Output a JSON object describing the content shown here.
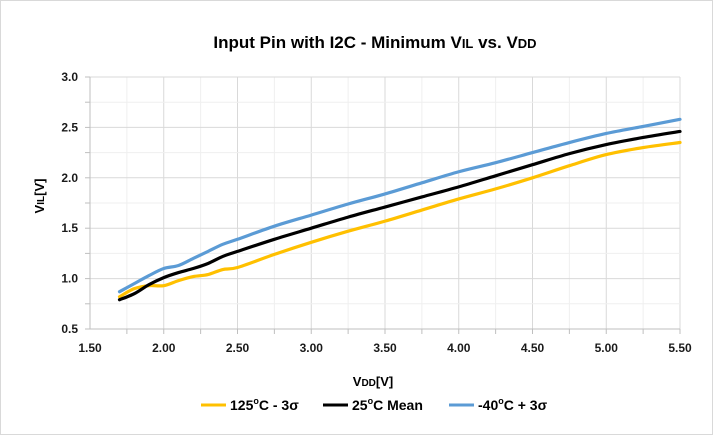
{
  "chart_data": {
    "type": "line",
    "title": "Input Pin with I2C - Minimum VIL vs. VDD",
    "title_parts": [
      "Input Pin with I2C - Minimum V",
      "IL",
      " vs. V",
      "DD"
    ],
    "xlabel": "VDD[V]",
    "xlabel_parts": [
      "V",
      "DD",
      "[V]"
    ],
    "ylabel": "VIL[V]",
    "ylabel_parts": [
      "V",
      "IL",
      "[V]"
    ],
    "xlim": [
      1.5,
      5.5
    ],
    "ylim": [
      0.5,
      3.0
    ],
    "x_ticks": [
      1.5,
      2.0,
      2.5,
      3.0,
      3.5,
      4.0,
      4.5,
      5.0,
      5.5
    ],
    "x_tick_labels": [
      "1.50",
      "2.00",
      "2.50",
      "3.00",
      "3.50",
      "4.00",
      "4.50",
      "5.00",
      "5.50"
    ],
    "y_ticks": [
      0.5,
      1.0,
      1.5,
      2.0,
      2.5,
      3.0
    ],
    "y_tick_labels": [
      "0.5",
      "1.0",
      "1.5",
      "2.0",
      "2.5",
      "3.0"
    ],
    "grid": true,
    "legend_position": "bottom",
    "x": [
      1.7,
      1.8,
      1.9,
      2.0,
      2.1,
      2.2,
      2.3,
      2.4,
      2.5,
      2.75,
      3.0,
      3.25,
      3.5,
      3.75,
      4.0,
      4.25,
      4.5,
      4.75,
      5.0,
      5.25,
      5.5
    ],
    "series": [
      {
        "name": "125°C - 3σ",
        "color": "#ffc000",
        "values": [
          0.82,
          0.9,
          0.93,
          0.93,
          0.98,
          1.02,
          1.04,
          1.09,
          1.11,
          1.24,
          1.36,
          1.47,
          1.57,
          1.68,
          1.79,
          1.89,
          2.0,
          2.12,
          2.23,
          2.3,
          2.35
        ]
      },
      {
        "name": "25°C Mean",
        "color": "#000000",
        "values": [
          0.79,
          0.85,
          0.94,
          1.01,
          1.06,
          1.1,
          1.15,
          1.22,
          1.27,
          1.39,
          1.5,
          1.61,
          1.71,
          1.81,
          1.91,
          2.02,
          2.13,
          2.24,
          2.33,
          2.4,
          2.46
        ]
      },
      {
        "name": "-40°C + 3σ",
        "color": "#5b9bd5",
        "values": [
          0.87,
          0.95,
          1.03,
          1.1,
          1.13,
          1.2,
          1.27,
          1.34,
          1.39,
          1.52,
          1.63,
          1.74,
          1.84,
          1.95,
          2.06,
          2.15,
          2.25,
          2.35,
          2.44,
          2.51,
          2.58
        ]
      }
    ]
  },
  "legend": {
    "items": [
      {
        "label_parts": [
          "125",
          "o",
          "C - 3σ"
        ],
        "color": "#ffc000"
      },
      {
        "label_parts": [
          "25",
          "o",
          "C Mean"
        ],
        "color": "#000000"
      },
      {
        "label_parts": [
          "-40",
          "o",
          "C + 3σ"
        ],
        "color": "#5b9bd5"
      }
    ]
  },
  "colors": {
    "grid": "#d9d9d9",
    "axis": "#bfbfbf"
  }
}
